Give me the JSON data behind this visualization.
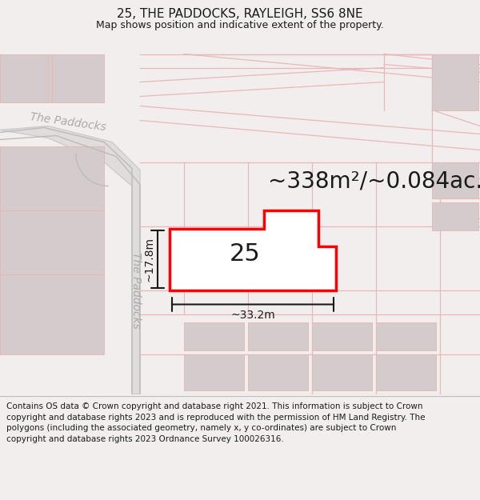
{
  "title_line1": "25, THE PADDOCKS, RAYLEIGH, SS6 8NE",
  "title_line2": "Map shows position and indicative extent of the property.",
  "area_text": "~338m²/~0.084ac.",
  "label_25": "25",
  "dim_width": "~33.2m",
  "dim_height": "~17.8m",
  "street_name": "The Paddocks",
  "copyright_text": "Contains OS data © Crown copyright and database right 2021. This information is subject to Crown copyright and database rights 2023 and is reproduced with the permission of HM Land Registry. The polygons (including the associated geometry, namely x, y co-ordinates) are subject to Crown copyright and database rights 2023 Ordnance Survey 100026316.",
  "bg_color": "#f2eeee",
  "map_bg": "#f2eeee",
  "road_color": "#e8b8b8",
  "road_outline_color": "#ccaaaa",
  "building_color": "#d4cccc",
  "plot_outline_color": "#ff0000",
  "plot_fill_color": "#ffffff",
  "dim_line_color": "#1a1a1a",
  "text_color": "#1a1a1a",
  "street_text_color": "#aaaaaa",
  "footer_bg": "#ffffff",
  "title_fontsize": 11,
  "subtitle_fontsize": 9,
  "area_fontsize": 20,
  "label_fontsize": 22,
  "dim_fontsize": 10,
  "street_fontsize": 10,
  "footer_fontsize": 7.5
}
